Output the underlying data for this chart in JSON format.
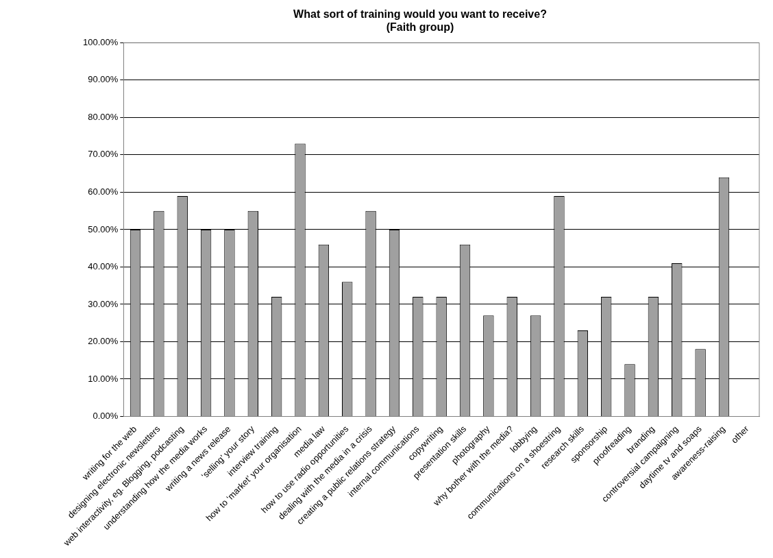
{
  "chart_data": {
    "type": "bar",
    "title": "What sort of training would you want to receive?",
    "subtitle": "(Faith group)",
    "categories": [
      "writing for the web",
      "designing electronic newsletters",
      "web interactivity, eg. Blogging, podcasting",
      "understanding how the media works",
      "writing a news release",
      "‘selling’ your story",
      "interview training",
      "how to ‘market’ your organisation",
      "media law",
      "how to use radio opportunities",
      "dealing with the media in a crisis",
      "creating a public relations strategy",
      "internal communications",
      "copywriting",
      "presentation skills",
      "photography",
      "why bother with the media?",
      "lobbying",
      "communications on a shoestring",
      "research skills",
      "sponsorship",
      "proofreading",
      "branding",
      "controversial campaigning",
      "daytime tv and soaps",
      "awareness-raising",
      "other"
    ],
    "values": [
      50,
      55,
      59,
      50,
      50,
      55,
      32,
      73,
      46,
      36,
      55,
      50,
      32,
      32,
      46,
      27,
      32,
      27,
      59,
      23,
      32,
      14,
      32,
      41,
      18,
      64,
      0
    ],
    "color": "#a0a0a0",
    "ylim": [
      0,
      100
    ],
    "yticks": [
      {
        "value": 0,
        "label": "0.00%"
      },
      {
        "value": 10,
        "label": "10.00%"
      },
      {
        "value": 20,
        "label": "20.00%"
      },
      {
        "value": 30,
        "label": "30.00%"
      },
      {
        "value": 40,
        "label": "40.00%"
      },
      {
        "value": 50,
        "label": "50.00%"
      },
      {
        "value": 60,
        "label": "60.00%"
      },
      {
        "value": 70,
        "label": "70.00%"
      },
      {
        "value": 80,
        "label": "80.00%"
      },
      {
        "value": 90,
        "label": "90.00%"
      },
      {
        "value": 100,
        "label": "100.00%"
      }
    ],
    "grid": "y",
    "legend": false
  }
}
